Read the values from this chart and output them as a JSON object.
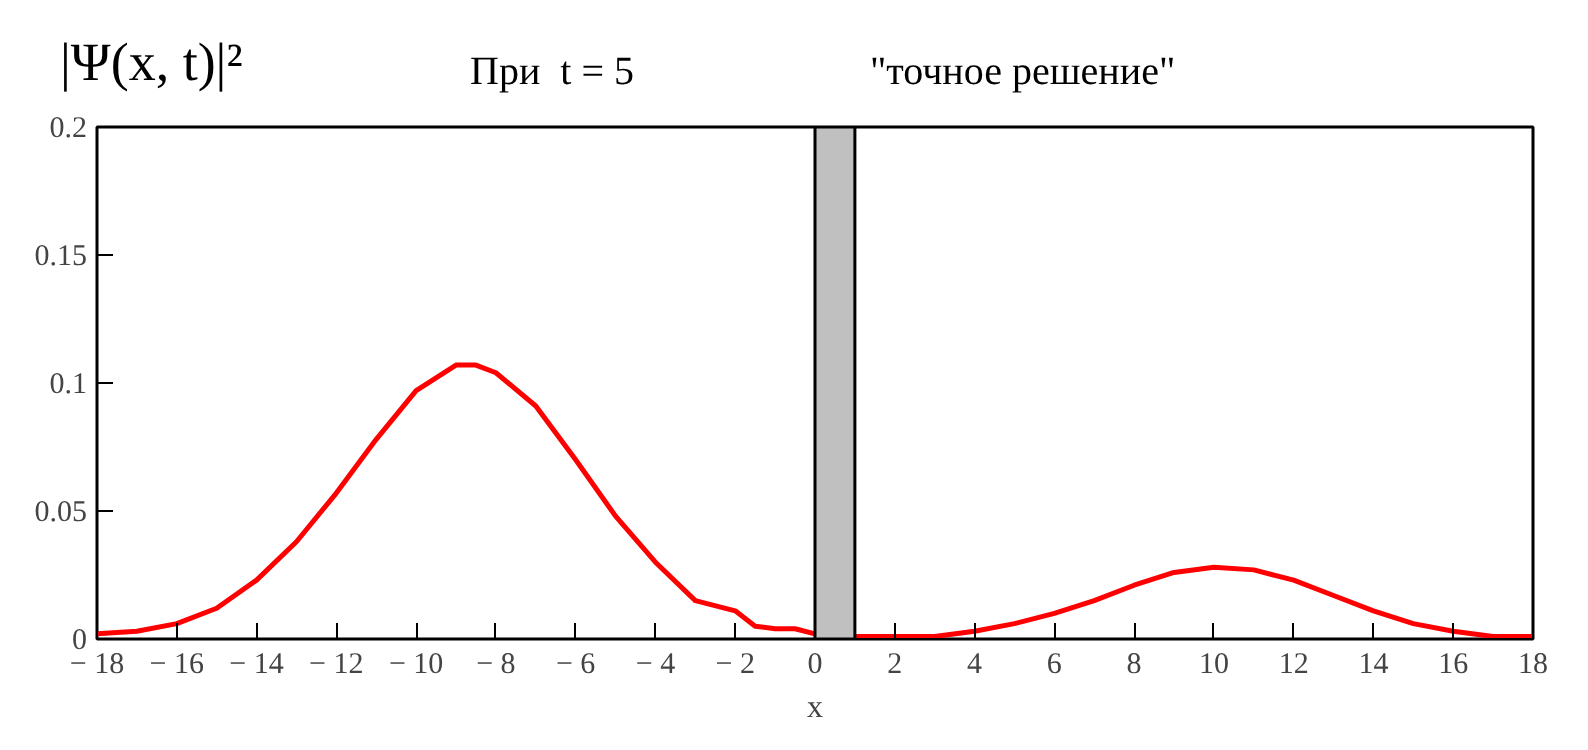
{
  "chart_data": {
    "type": "line",
    "title": "|Ψ(x, t)|²",
    "subtitle": "При  t = 5",
    "annotations": [
      "\"точное решение\""
    ],
    "xlabel": "x",
    "x": [
      -18,
      -17,
      -16,
      -15,
      -14,
      -13,
      -12,
      -11,
      -10,
      -9,
      -8.5,
      -8,
      -7,
      -6,
      -5,
      -4,
      -3,
      -2,
      -1.5,
      -1,
      -0.5,
      0,
      1,
      2,
      3,
      4,
      5,
      6,
      7,
      8,
      9,
      10,
      11,
      12,
      13,
      14,
      15,
      16,
      17,
      18
    ],
    "series": [
      {
        "color": "#ff0000",
        "values": [
          0.002,
          0.003,
          0.006,
          0.012,
          0.023,
          0.038,
          0.057,
          0.078,
          0.097,
          0.107,
          0.107,
          0.104,
          0.091,
          0.07,
          0.048,
          0.03,
          0.015,
          0.011,
          0.005,
          0.004,
          0.004,
          0.002,
          0.001,
          0.001,
          0.001,
          0.003,
          0.006,
          0.01,
          0.015,
          0.021,
          0.026,
          0.028,
          0.027,
          0.023,
          0.017,
          0.011,
          0.006,
          0.003,
          0.001,
          0.001
        ]
      }
    ],
    "xlim": [
      -18,
      18
    ],
    "xticks": [
      {
        "value": -18,
        "label": "− 18"
      },
      {
        "value": -16,
        "label": "− 16"
      },
      {
        "value": -14,
        "label": "− 14"
      },
      {
        "value": -12,
        "label": "− 12"
      },
      {
        "value": -10,
        "label": "− 10"
      },
      {
        "value": -8,
        "label": "− 8"
      },
      {
        "value": -6,
        "label": "− 6"
      },
      {
        "value": -4,
        "label": "− 4"
      },
      {
        "value": -2,
        "label": "− 2"
      },
      0,
      2,
      4,
      6,
      8,
      10,
      12,
      14,
      16,
      18
    ],
    "ylim": [
      0,
      0.2
    ],
    "yticks": [
      0,
      0.05,
      0.1,
      0.15,
      0.2
    ],
    "bands": [
      {
        "axis": "x",
        "from": 0,
        "to": 1,
        "color": "#c0c0c0"
      }
    ],
    "grid": false
  }
}
